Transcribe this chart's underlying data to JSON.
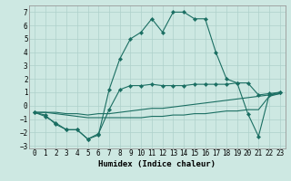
{
  "xlabel": "Humidex (Indice chaleur)",
  "xlim": [
    0,
    23
  ],
  "ylim": [
    -3,
    7
  ],
  "xticks": [
    0,
    1,
    2,
    3,
    4,
    5,
    6,
    7,
    8,
    9,
    10,
    11,
    12,
    13,
    14,
    15,
    16,
    17,
    18,
    19,
    20,
    21,
    22,
    23
  ],
  "yticks": [
    -3,
    -2,
    -1,
    0,
    1,
    2,
    3,
    4,
    5,
    6,
    7
  ],
  "background_color": "#cde8e2",
  "grid_color": "#aed0ca",
  "line_color": "#1a6e62",
  "curve_main": {
    "x": [
      0,
      1,
      2,
      3,
      4,
      5,
      6,
      7,
      8,
      9,
      10,
      11,
      12,
      13,
      14,
      15,
      16,
      17,
      18,
      19,
      20,
      21,
      22,
      23
    ],
    "y": [
      -0.5,
      -0.8,
      -1.3,
      -1.8,
      -1.8,
      -2.5,
      -2.2,
      1.2,
      3.5,
      5.0,
      5.5,
      6.5,
      5.5,
      7.0,
      7.0,
      6.5,
      6.5,
      4.0,
      2.0,
      1.7,
      -0.6,
      -2.3,
      0.8,
      1.0
    ]
  },
  "curve_mid": {
    "x": [
      0,
      1,
      2,
      3,
      4,
      5,
      6,
      7,
      8,
      9,
      10,
      11,
      12,
      13,
      14,
      15,
      16,
      17,
      18,
      19,
      20,
      21,
      22,
      23
    ],
    "y": [
      -0.5,
      -0.7,
      -1.4,
      -1.8,
      -1.8,
      -2.5,
      -2.1,
      -0.3,
      1.2,
      1.5,
      1.5,
      1.6,
      1.5,
      1.5,
      1.5,
      1.6,
      1.6,
      1.6,
      1.6,
      1.7,
      1.7,
      0.8,
      0.9,
      1.0
    ]
  },
  "line_upper": {
    "x": [
      0,
      1,
      2,
      3,
      4,
      5,
      6,
      7,
      8,
      9,
      10,
      11,
      12,
      13,
      14,
      15,
      16,
      17,
      18,
      19,
      20,
      21,
      22,
      23
    ],
    "y": [
      -0.5,
      -0.5,
      -0.5,
      -0.6,
      -0.6,
      -0.7,
      -0.6,
      -0.6,
      -0.5,
      -0.4,
      -0.3,
      -0.2,
      -0.2,
      -0.1,
      0.0,
      0.1,
      0.2,
      0.3,
      0.4,
      0.5,
      0.6,
      0.7,
      0.8,
      0.9
    ]
  },
  "line_lower": {
    "x": [
      0,
      1,
      2,
      3,
      4,
      5,
      6,
      7,
      8,
      9,
      10,
      11,
      12,
      13,
      14,
      15,
      16,
      17,
      18,
      19,
      20,
      21,
      22,
      23
    ],
    "y": [
      -0.5,
      -0.5,
      -0.6,
      -0.7,
      -0.8,
      -0.9,
      -0.9,
      -0.9,
      -0.9,
      -0.9,
      -0.9,
      -0.8,
      -0.8,
      -0.7,
      -0.7,
      -0.6,
      -0.6,
      -0.5,
      -0.4,
      -0.4,
      -0.3,
      -0.3,
      0.7,
      0.9
    ]
  }
}
